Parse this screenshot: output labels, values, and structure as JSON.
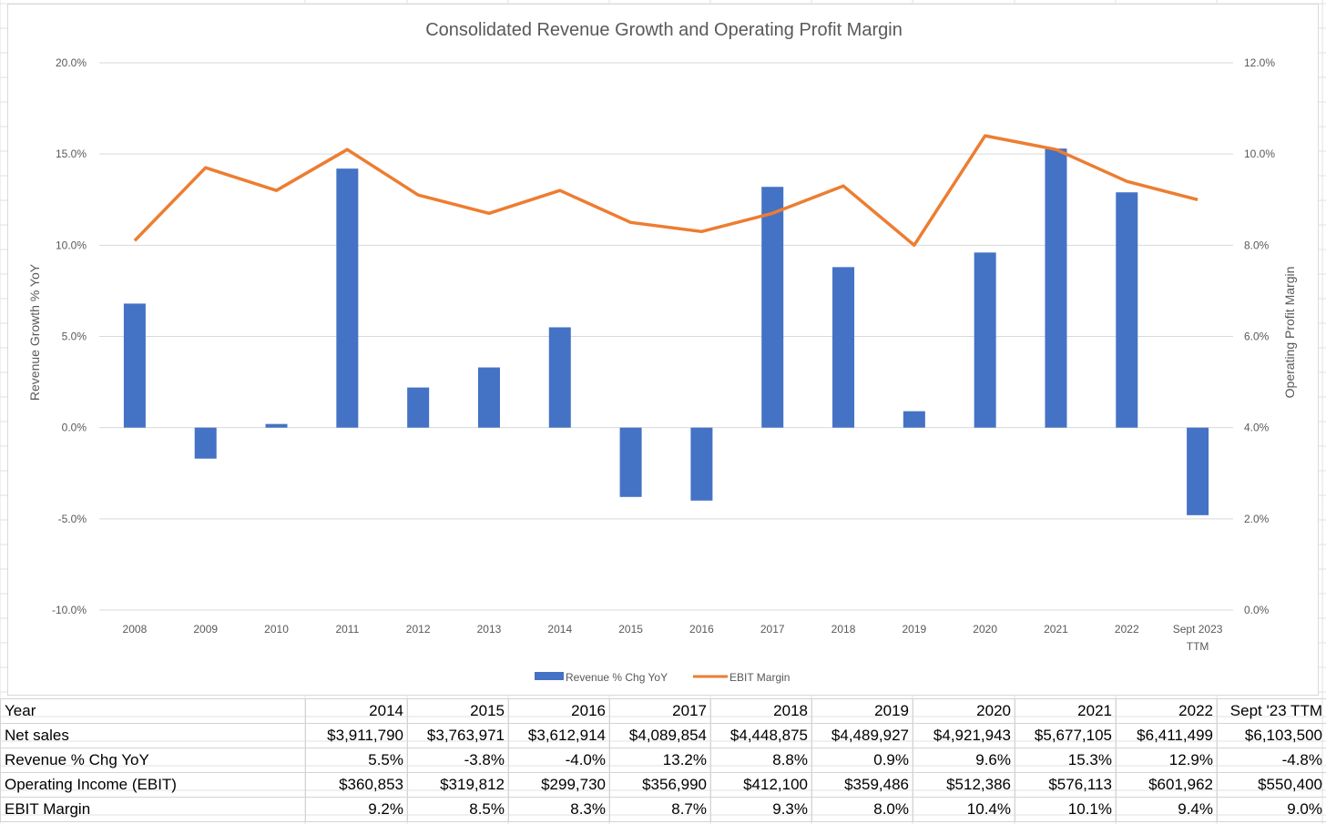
{
  "chart_data": {
    "type": "bar+line",
    "title": "Consolidated Revenue Growth and Operating Profit Margin",
    "ylabel_left": "Revenue Growth % YoY",
    "ylabel_right": "Operating Profit Margin",
    "ylim_left": [
      -10,
      20
    ],
    "ylim_right": [
      0,
      12
    ],
    "yticks_left": [
      "20.0%",
      "15.0%",
      "10.0%",
      "5.0%",
      "0.0%",
      "-5.0%",
      "-10.0%"
    ],
    "yticks_right": [
      "12.0%",
      "10.0%",
      "8.0%",
      "6.0%",
      "4.0%",
      "2.0%",
      "0.0%"
    ],
    "categories": [
      "2008",
      "2009",
      "2010",
      "2011",
      "2012",
      "2013",
      "2014",
      "2015",
      "2016",
      "2017",
      "2018",
      "2019",
      "2020",
      "2021",
      "2022",
      "Sept 2023 TTM"
    ],
    "grid": "horizontal",
    "legend": "bottom",
    "series": [
      {
        "name": "Revenue % Chg YoY",
        "type": "bar",
        "axis": "left",
        "color": "#4472C4",
        "values": [
          6.8,
          -1.7,
          0.2,
          14.2,
          2.2,
          3.3,
          5.5,
          -3.8,
          -4.0,
          13.2,
          8.8,
          0.9,
          9.6,
          15.3,
          12.9,
          -4.8
        ]
      },
      {
        "name": "EBIT Margin",
        "type": "line",
        "axis": "right",
        "color": "#ED7D31",
        "values": [
          8.1,
          9.7,
          9.2,
          10.1,
          9.1,
          8.7,
          9.2,
          8.5,
          8.3,
          8.7,
          9.3,
          8.0,
          10.4,
          10.1,
          9.4,
          9.0
        ]
      }
    ]
  },
  "table": {
    "header": [
      "Year",
      "2014",
      "2015",
      "2016",
      "2017",
      "2018",
      "2019",
      "2020",
      "2021",
      "2022",
      "Sept '23 TTM"
    ],
    "rows": [
      [
        "Net sales",
        "$3,911,790",
        "$3,763,971",
        "$3,612,914",
        "$4,089,854",
        "$4,448,875",
        "$4,489,927",
        "$4,921,943",
        "$5,677,105",
        "$6,411,499",
        "$6,103,500"
      ],
      [
        "Revenue % Chg YoY",
        "5.5%",
        "-3.8%",
        "-4.0%",
        "13.2%",
        "8.8%",
        "0.9%",
        "9.6%",
        "15.3%",
        "12.9%",
        "-4.8%"
      ],
      [
        "Operating Income (EBIT)",
        "$360,853",
        "$319,812",
        "$299,730",
        "$356,990",
        "$412,100",
        "$359,486",
        "$512,386",
        "$576,113",
        "$601,962",
        "$550,400"
      ],
      [
        "EBIT Margin",
        "9.2%",
        "8.5%",
        "8.3%",
        "8.7%",
        "9.3%",
        "8.0%",
        "10.4%",
        "10.1%",
        "9.4%",
        "9.0%"
      ]
    ]
  }
}
